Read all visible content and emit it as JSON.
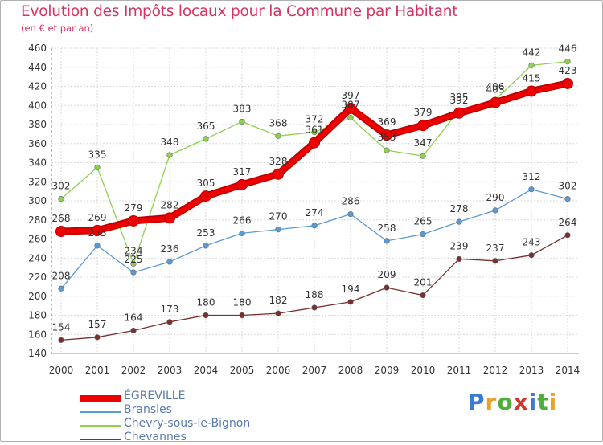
{
  "chart_data": {
    "type": "line",
    "title": "Evolution des Impôts locaux pour la Commune par Habitant",
    "subtitle": "(en € et par an)",
    "xlabel": "",
    "ylabel": "",
    "categories": [
      "2000",
      "2001",
      "2002",
      "2003",
      "2004",
      "2005",
      "2006",
      "2007",
      "2008",
      "2009",
      "2010",
      "2011",
      "2012",
      "2013",
      "2014"
    ],
    "ylim": [
      140,
      460
    ],
    "yticks": [
      140,
      160,
      180,
      200,
      220,
      240,
      260,
      280,
      300,
      320,
      340,
      360,
      380,
      400,
      420,
      440,
      460
    ],
    "grid": true,
    "legend_position": "bottom-left",
    "series": [
      {
        "name": "ÉGREVILLE",
        "color": "#ee0000",
        "values": [
          268,
          269,
          279,
          282,
          305,
          317,
          328,
          361,
          397,
          369,
          379,
          392,
          403,
          415,
          423
        ]
      },
      {
        "name": "Bransles",
        "color": "#5b9bd5",
        "values": [
          208,
          253,
          225,
          236,
          253,
          266,
          270,
          274,
          286,
          258,
          265,
          278,
          290,
          312,
          302
        ]
      },
      {
        "name": "Chevry-sous-le-Bignon",
        "color": "#8fd14f",
        "values": [
          302,
          335,
          234,
          348,
          365,
          383,
          368,
          372,
          387,
          353,
          347,
          395,
          406,
          442,
          446
        ]
      },
      {
        "name": "Chevannes",
        "color": "#7a2e2e",
        "values": [
          154,
          157,
          164,
          173,
          180,
          180,
          182,
          188,
          194,
          209,
          201,
          239,
          237,
          243,
          264
        ]
      }
    ]
  },
  "branding": {
    "logo_text": "Proxiti"
  }
}
